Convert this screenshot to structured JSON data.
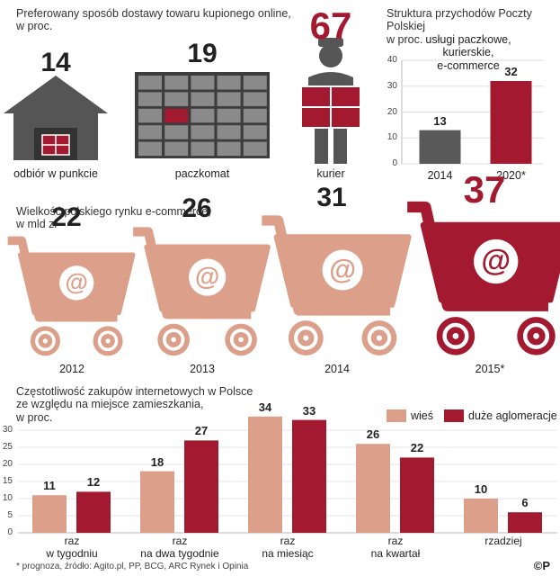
{
  "chart_data": [
    {
      "type": "pictogram",
      "title": "Preferowany sposób dostawy towaru kupionego online,\nw proc.",
      "categories": [
        "odbiór w punkcie",
        "paczkomat",
        "kurier"
      ],
      "values": [
        14,
        19,
        67
      ],
      "colors": [
        "#222222",
        "#222222",
        "#a3192f"
      ]
    },
    {
      "type": "bar",
      "title": "Struktura przychodów Poczty Polskiej\nw proc.",
      "subtitle": "usługi paczkowe, kurierskie,\ne-commerce",
      "categories": [
        "2014",
        "2020*"
      ],
      "values": [
        13,
        32
      ],
      "colors": [
        "#595959",
        "#a3192f"
      ],
      "ylim": [
        0,
        40
      ],
      "yticks": [
        0,
        10,
        20,
        30,
        40
      ],
      "grid": true
    },
    {
      "type": "cart",
      "title": "Wielkość polskiego rynku e-commerce,\nw mld zł",
      "categories": [
        "2012",
        "2013",
        "2014",
        "2015*"
      ],
      "values": [
        22,
        26,
        31,
        37
      ],
      "colors": [
        "#dca08a",
        "#dca08a",
        "#dca08a",
        "#a3192f"
      ]
    },
    {
      "type": "grouped_bar",
      "title": "Częstotliwość zakupów internetowych w Polsce\nze względu na miejsce zamieszkania,\nw proc.",
      "categories": [
        "raz\nw tygodniu",
        "raz\nna dwa tygodnie",
        "raz\nna miesiąc",
        "raz\nna kwartał",
        "rzadziej"
      ],
      "series": [
        {
          "name": "wieś",
          "color": "#dca08a",
          "values": [
            11,
            18,
            34,
            26,
            10
          ]
        },
        {
          "name": "duże aglomeracje",
          "color": "#a3192f",
          "values": [
            12,
            27,
            33,
            22,
            6
          ]
        }
      ],
      "ylim": [
        0,
        35
      ],
      "yticks": [
        0,
        5,
        10,
        15,
        20,
        25,
        30
      ],
      "grid": true,
      "legend": "top-right"
    }
  ],
  "footnote": "* prognoza, źródło: Agito.pl, PP, BCG, ARC Rynek i Opinia",
  "logo": "©P"
}
